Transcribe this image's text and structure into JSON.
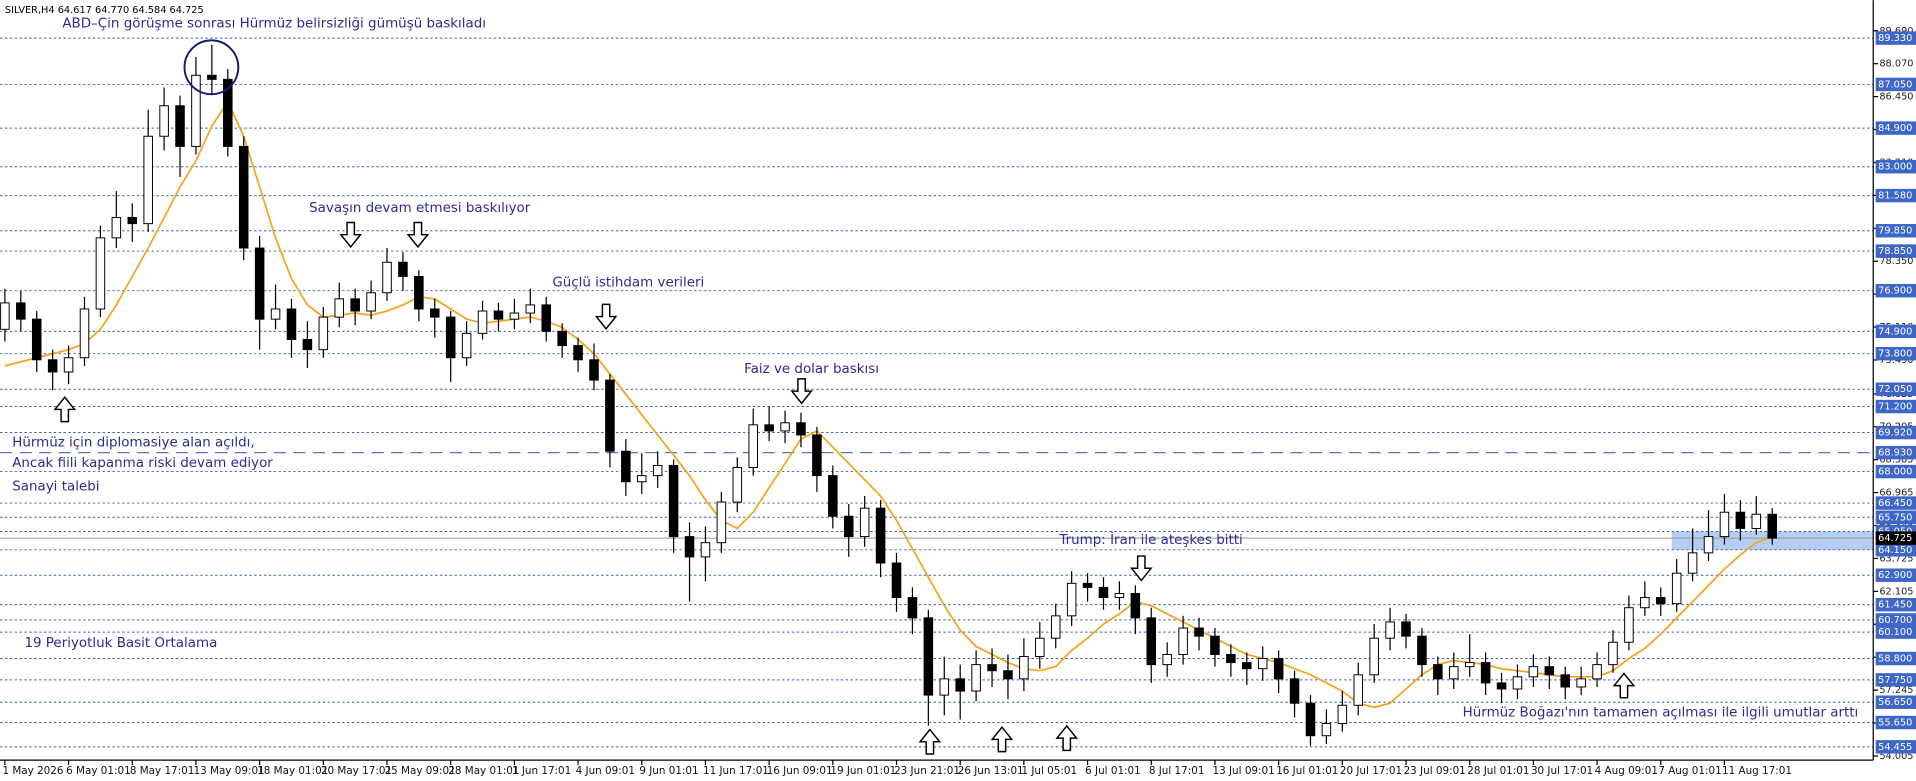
{
  "chart_data": {
    "type": "candlestick",
    "title": "SILVER,H4  64.617 64.770 64.584 64.725",
    "ylim": [
      53.8,
      91.2
    ],
    "yticks": [
      54.005,
      55.625,
      57.245,
      58.865,
      60.485,
      62.105,
      63.725,
      65.345,
      66.965,
      68.585,
      70.205,
      71.825,
      {
        "value": 73.49,
        "label": "73.490"
      },
      {
        "value": 75.11,
        "label": "75.110"
      },
      {
        "value": 76.73,
        "label": "76.730"
      },
      {
        "value": 78.35,
        "label": "78.350"
      },
      {
        "value": 79.97,
        "label": "79.970"
      },
      {
        "value": 81.59,
        "label": "81.590"
      },
      {
        "value": 83.21,
        "label": "83.210"
      },
      {
        "value": 84.83,
        "label": "84.830"
      },
      {
        "value": 86.45,
        "label": "86.450"
      },
      {
        "value": 88.07,
        "label": "88.070"
      },
      {
        "value": 89.69,
        "label": "89.690"
      }
    ],
    "levels": [
      {
        "value": 89.33,
        "label": "89.330"
      },
      {
        "value": 87.05,
        "label": "87.050"
      },
      {
        "value": 84.9,
        "label": "84.900"
      },
      {
        "value": 83.0,
        "label": "83.000"
      },
      {
        "value": 81.58,
        "label": "81.580"
      },
      {
        "value": 79.85,
        "label": "79.850"
      },
      {
        "value": 78.85,
        "label": "78.850"
      },
      {
        "value": 76.9,
        "label": "76.900"
      },
      {
        "value": 74.9,
        "label": "74.900"
      },
      {
        "value": 73.8,
        "label": "73.800"
      },
      {
        "value": 72.05,
        "label": "72.050"
      },
      {
        "value": 71.2,
        "label": "71.200"
      },
      {
        "value": 69.92,
        "label": "69.920"
      },
      {
        "value": 68.0,
        "label": "68.000"
      },
      {
        "value": 66.45,
        "label": "66.450"
      },
      {
        "value": 65.75,
        "label": "65.750"
      },
      {
        "value": 65.05,
        "label": "65.050"
      },
      {
        "value": 64.15,
        "label": "64.150"
      },
      {
        "value": 62.9,
        "label": "62.900"
      },
      {
        "value": 61.45,
        "label": "61.450"
      },
      {
        "value": 60.7,
        "label": "60.700"
      },
      {
        "value": 60.1,
        "label": "60.100"
      },
      {
        "value": 58.8,
        "label": "58.800"
      },
      {
        "value": 57.75,
        "label": "57.750"
      },
      {
        "value": 56.65,
        "label": "56.650"
      },
      {
        "value": 55.65,
        "label": "55.650"
      },
      54.455
    ],
    "dashed_levels": [
      {
        "value": 68.93,
        "label": "68.930"
      }
    ],
    "last_price": 64.725,
    "zone": {
      "from": 64.15,
      "to": 65.05,
      "start": 105
    },
    "categories": [
      "1 May 2026",
      null,
      null,
      null,
      "6 May 01:01",
      null,
      null,
      null,
      "8 May 17:01",
      null,
      null,
      null,
      "13 May 09:01",
      null,
      null,
      null,
      "18 May 01:01",
      null,
      null,
      null,
      "20 May 17:01",
      null,
      null,
      null,
      "25 May 09:01",
      null,
      null,
      null,
      "28 May 01:01",
      null,
      null,
      null,
      "1 Jun 17:01",
      null,
      null,
      null,
      "4 Jun 09:01",
      null,
      null,
      null,
      "9 Jun 01:01",
      null,
      null,
      null,
      "11 Jun 17:01",
      null,
      null,
      null,
      "16 Jun 09:01",
      null,
      null,
      null,
      "19 Jun 01:01",
      null,
      null,
      null,
      "23 Jun 21:01",
      null,
      null,
      null,
      "26 Jun 13:01",
      null,
      null,
      null,
      "1 Jul 05:01",
      null,
      null,
      null,
      "6 Jul 01:01",
      null,
      null,
      null,
      "8 Jul 17:01",
      null,
      null,
      null,
      "13 Jul 09:01",
      null,
      null,
      null,
      "16 Jul 01:01",
      null,
      null,
      null,
      "20 Jul 17:01",
      null,
      null,
      null,
      "23 Jul 09:01",
      null,
      null,
      null,
      "28 Jul 01:01",
      null,
      null,
      null,
      "30 Jul 17:01",
      null,
      null,
      null,
      "4 Aug 09:01",
      null,
      null,
      null,
      "7 Aug 01:01",
      null,
      null,
      null,
      "11 Aug 17:01",
      null,
      null,
      null
    ],
    "open": [
      75.0,
      76.3,
      75.5,
      73.5,
      72.9,
      73.6,
      76.0,
      79.5,
      80.5,
      80.2,
      84.5,
      86.0,
      84.0,
      87.5,
      87.3,
      84.0,
      79.0,
      75.5,
      76.0,
      74.5,
      74.0,
      75.6,
      76.5,
      75.9,
      76.8,
      78.3,
      77.6,
      76.0,
      75.6,
      73.6,
      74.8,
      75.9,
      75.5,
      75.8,
      76.2,
      74.9,
      74.2,
      73.5,
      72.5,
      69.0,
      67.5,
      67.8,
      68.3,
      64.8,
      63.8,
      64.5,
      66.5,
      68.2,
      70.3,
      70.0,
      70.4,
      69.8,
      67.8,
      65.8,
      64.8,
      66.2,
      63.5,
      61.8,
      60.8,
      57.0,
      57.8,
      57.2,
      58.5,
      58.2,
      57.8,
      58.9,
      59.8,
      60.9,
      62.5,
      62.3,
      61.8,
      62.0,
      60.8,
      58.5,
      59.0,
      60.3,
      59.9,
      59.0,
      58.6,
      58.3,
      58.8,
      57.8,
      56.6,
      55.0,
      55.6,
      56.5,
      58.0,
      59.8,
      60.6,
      59.9,
      58.5,
      57.8,
      58.4,
      58.6,
      57.6,
      57.3,
      57.9,
      58.4,
      58.0,
      57.4,
      57.8,
      58.5,
      59.6,
      61.3,
      61.8,
      61.5,
      63.0,
      64.0,
      64.8,
      66.0,
      65.2,
      65.9
    ],
    "high": [
      77.0,
      76.9,
      75.9,
      74.0,
      74.2,
      76.6,
      80.1,
      81.8,
      81.2,
      85.8,
      86.9,
      86.5,
      88.4,
      89.0,
      87.8,
      84.5,
      79.6,
      77.2,
      76.5,
      75.4,
      76.1,
      77.3,
      77.0,
      77.4,
      79.0,
      78.8,
      77.9,
      76.5,
      75.9,
      75.4,
      76.4,
      76.3,
      76.5,
      77.0,
      76.6,
      75.3,
      74.6,
      74.3,
      72.8,
      69.6,
      68.9,
      69.0,
      68.6,
      65.5,
      65.3,
      67.0,
      68.7,
      71.1,
      71.2,
      71.0,
      70.9,
      70.2,
      68.3,
      66.4,
      66.8,
      66.6,
      64.0,
      62.3,
      61.2,
      58.9,
      58.5,
      59.2,
      59.3,
      59.0,
      59.8,
      60.6,
      61.5,
      63.1,
      63.0,
      62.8,
      62.6,
      62.4,
      61.3,
      59.6,
      60.9,
      60.8,
      60.3,
      59.5,
      59.1,
      59.4,
      59.2,
      58.2,
      57.0,
      56.3,
      57.2,
      58.6,
      60.5,
      61.3,
      61.0,
      60.3,
      58.9,
      59.1,
      60.0,
      59.1,
      58.1,
      58.5,
      59.0,
      58.9,
      58.4,
      58.4,
      59.1,
      60.2,
      61.9,
      62.6,
      62.3,
      63.7,
      65.2,
      66.1,
      66.9,
      66.6,
      66.8,
      66.2
    ],
    "low": [
      74.4,
      74.9,
      72.9,
      72.0,
      72.3,
      73.2,
      75.6,
      79.0,
      79.3,
      79.8,
      83.8,
      82.5,
      83.6,
      86.6,
      83.5,
      78.4,
      74.0,
      75.0,
      73.6,
      73.1,
      73.6,
      75.1,
      75.2,
      75.5,
      76.4,
      76.9,
      75.4,
      74.6,
      72.4,
      73.2,
      74.5,
      74.9,
      75.0,
      75.3,
      74.4,
      73.6,
      72.9,
      72.0,
      68.2,
      66.8,
      66.9,
      67.2,
      64.0,
      61.6,
      62.6,
      64.0,
      66.0,
      67.8,
      69.5,
      69.4,
      69.2,
      67.0,
      65.2,
      63.8,
      64.3,
      62.8,
      61.1,
      60.0,
      55.5,
      56.0,
      55.8,
      56.7,
      57.4,
      56.8,
      57.2,
      58.3,
      59.3,
      60.4,
      61.6,
      61.2,
      61.2,
      60.0,
      57.6,
      57.9,
      58.5,
      59.2,
      58.4,
      57.9,
      57.5,
      57.7,
      57.1,
      55.9,
      54.5,
      54.6,
      55.2,
      56.0,
      57.6,
      59.2,
      59.3,
      57.9,
      57.0,
      57.3,
      57.9,
      57.0,
      56.6,
      56.8,
      57.4,
      57.3,
      56.8,
      57.0,
      57.4,
      58.1,
      59.2,
      60.9,
      60.9,
      61.1,
      62.6,
      63.6,
      64.4,
      64.6,
      64.9,
      64.4
    ],
    "close": [
      76.3,
      75.5,
      73.5,
      72.9,
      73.6,
      76.0,
      79.5,
      80.5,
      80.2,
      84.5,
      86.0,
      84.0,
      87.5,
      87.3,
      84.0,
      79.0,
      75.5,
      76.0,
      74.5,
      74.0,
      75.6,
      76.5,
      75.9,
      76.8,
      78.3,
      77.6,
      76.0,
      75.6,
      73.6,
      74.8,
      75.9,
      75.5,
      75.8,
      76.2,
      74.9,
      74.2,
      73.5,
      72.5,
      69.0,
      67.5,
      67.8,
      68.3,
      64.8,
      63.8,
      64.5,
      66.5,
      68.2,
      70.3,
      70.0,
      70.4,
      69.8,
      67.8,
      65.8,
      64.8,
      66.2,
      63.5,
      61.8,
      60.8,
      57.0,
      57.8,
      57.2,
      58.5,
      58.2,
      57.8,
      58.9,
      59.8,
      60.9,
      62.5,
      62.3,
      61.8,
      62.0,
      60.8,
      58.5,
      59.0,
      60.3,
      59.9,
      59.0,
      58.6,
      58.3,
      58.8,
      57.8,
      56.6,
      55.0,
      55.6,
      56.5,
      58.0,
      59.8,
      60.6,
      59.9,
      58.5,
      57.8,
      58.4,
      58.6,
      57.6,
      57.3,
      57.9,
      58.4,
      58.0,
      57.4,
      57.8,
      58.5,
      59.6,
      61.3,
      61.8,
      61.5,
      63.0,
      64.0,
      64.8,
      66.0,
      65.2,
      65.9,
      64.725
    ],
    "series": [
      {
        "name": "19 Periyotluk Basit Ortalama",
        "color": "#f5a31a",
        "values": [
          73.2,
          73.4,
          73.6,
          73.8,
          74.0,
          74.3,
          75.0,
          76.2,
          77.6,
          79.0,
          80.5,
          82.0,
          83.3,
          85.0,
          86.2,
          84.5,
          82.0,
          79.5,
          77.5,
          76.2,
          75.6,
          75.7,
          75.8,
          75.7,
          75.9,
          76.2,
          76.6,
          76.5,
          76.0,
          75.5,
          75.3,
          75.4,
          75.5,
          75.6,
          75.4,
          75.1,
          74.5,
          73.8,
          72.8,
          71.8,
          70.8,
          69.8,
          68.8,
          67.8,
          66.6,
          65.6,
          65.2,
          66.0,
          67.2,
          68.4,
          69.6,
          70.0,
          69.2,
          68.4,
          67.6,
          66.8,
          65.6,
          64.2,
          62.8,
          61.4,
          60.2,
          59.4,
          59.0,
          58.6,
          58.3,
          58.2,
          58.4,
          59.2,
          59.8,
          60.5,
          61.0,
          61.6,
          61.4,
          61.0,
          60.6,
          60.2,
          59.8,
          59.4,
          59.0,
          58.8,
          58.6,
          58.3,
          58.0,
          57.6,
          57.2,
          56.6,
          56.4,
          56.6,
          57.3,
          58.0,
          58.5,
          58.7,
          58.6,
          58.5,
          58.3,
          58.2,
          58.1,
          58.0,
          57.9,
          57.9,
          57.9,
          58.2,
          58.8,
          59.3,
          60.0,
          60.8,
          61.6,
          62.4,
          63.2,
          63.9,
          64.5,
          64.8
        ]
      }
    ],
    "annotations": [
      "ABD–Çin görüşme sonrası Hürmüz belirsizliği gümüşü baskıladı",
      "Savaşın devam etmesi baskılıyor",
      "Güçlü istihdam verileri",
      "Faiz ve dolar baskısı",
      "Hürmüz için diplomasiye alan açıldı,",
      "Ancak fiili kapanma riski devam ediyor",
      "Sanayi talebi",
      "Trump: İran ile ateşkes bitti",
      "Hürmüz Boğazı'nın tamamen açılması ile ilgili umutlar arttı"
    ]
  }
}
